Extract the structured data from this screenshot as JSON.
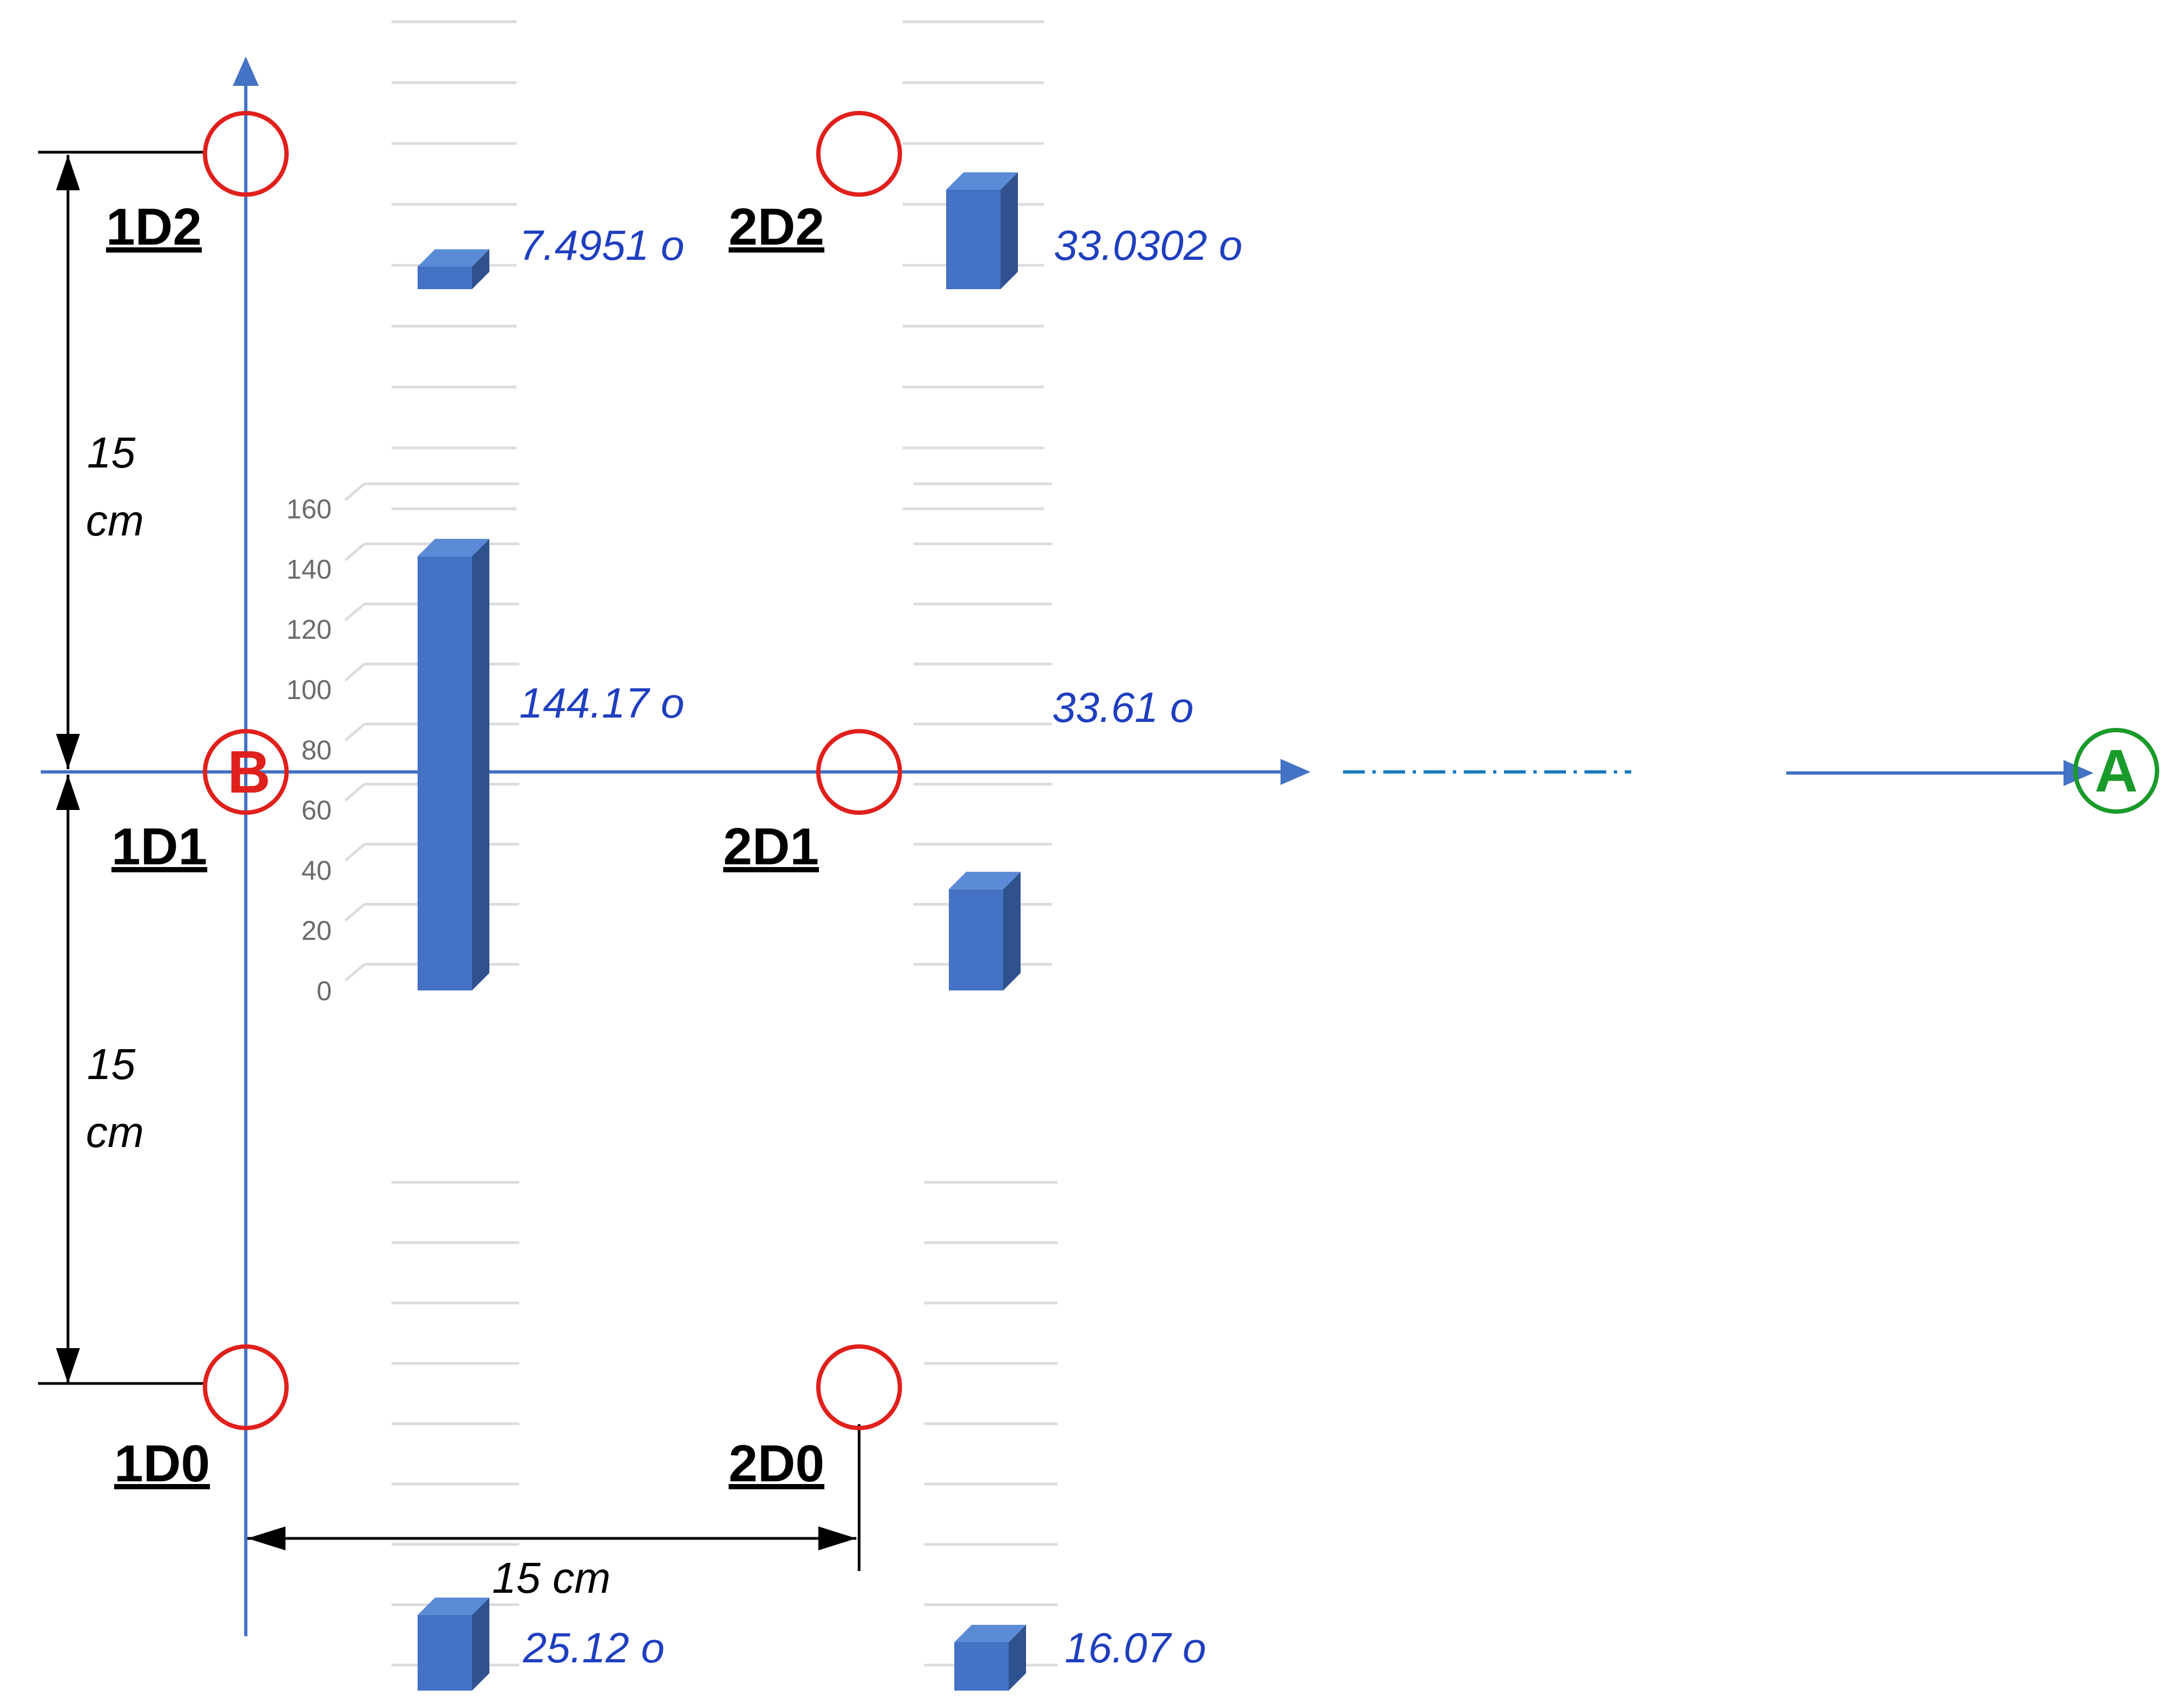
{
  "points": [
    {
      "key": "1D2",
      "label": "1D2"
    },
    {
      "key": "1D1",
      "label": "1D1"
    },
    {
      "key": "1D0",
      "label": "1D0"
    },
    {
      "key": "2D2",
      "label": "2D2"
    },
    {
      "key": "2D1",
      "label": "2D1"
    },
    {
      "key": "2D0",
      "label": "2D0"
    }
  ],
  "markers": {
    "b": "B",
    "a": "A"
  },
  "dimensions": {
    "upper_value": "15",
    "upper_unit": "cm",
    "lower_value": "15",
    "lower_unit": "cm",
    "horizontal": "15 cm"
  },
  "bars": [
    {
      "key": "1D2",
      "value": 7.4951,
      "label": "7.4951 o"
    },
    {
      "key": "2D2",
      "value": 33.0302,
      "label": "33.0302 o"
    },
    {
      "key": "1D1",
      "value": 144.17,
      "label": "144.17 o"
    },
    {
      "key": "2D1",
      "value": 33.61,
      "label": "33.61 o"
    },
    {
      "key": "1D0",
      "value": 25.12,
      "label": "25.12 o"
    },
    {
      "key": "2D0",
      "value": 16.07,
      "label": "16.07 o"
    }
  ],
  "y_axis": {
    "ticks": [
      "0",
      "20",
      "40",
      "60",
      "80",
      "100",
      "120",
      "140",
      "160"
    ],
    "min": 0,
    "max": 160
  },
  "colors": {
    "axis": "#4472c4",
    "bar_front": "#4472c4",
    "bar_side": "#2f528f",
    "bar_top": "#5b8bd6",
    "value_text": "#1f3fbf",
    "circle": "#e0201c",
    "marker_b": "#e0201c",
    "marker_a": "#1a9a2a",
    "dim": "#000000",
    "grid": "#dcdcdc"
  }
}
